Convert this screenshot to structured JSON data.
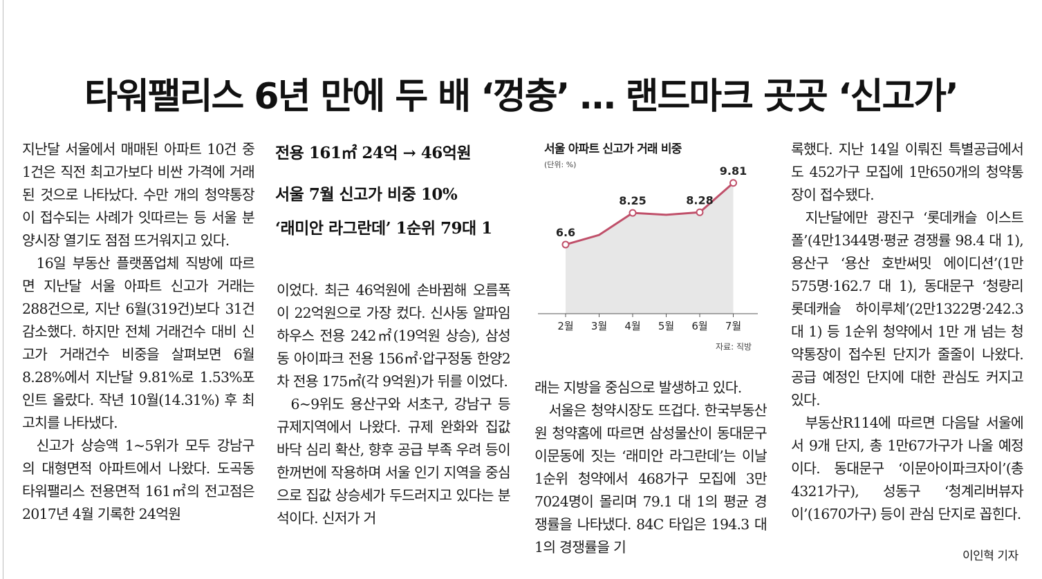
{
  "headline": "타워팰리스 6년 만에 두 배 ‘껑충’ … 랜드마크 곳곳 ‘신고가’",
  "subheads": [
    "전용 161㎡ 24억 → 46억원",
    "서울 7월 신고가 비중 10%",
    "‘래미안 라그란데’ 1순위 79대 1"
  ],
  "columns": {
    "col1": [
      "지난달 서울에서 매매된 아파트 10건 중 1건은 직전 최고가보다 비싼 가격에 거래된 것으로 나타났다. 수만 개의 청약통장이 접수되는 사례가 잇따르는 등 서울 분양시장 열기도 점점 뜨거워지고 있다.",
      "16일 부동산 플랫폼업체 직방에 따르면 지난달 서울 아파트 신고가 거래는 288건으로, 지난 6월(319건)보다 31건 감소했다. 하지만 전체 거래건수 대비 신고가 거래건수 비중을 살펴보면 6월 8.28%에서 지난달 9.81%로 1.53%포인트 올랐다. 작년 10월(14.31%) 후 최고치를 나타냈다.",
      "신고가 상승액 1~5위가 모두 강남구의 대형면적 아파트에서 나왔다. 도곡동 타워팰리스 전용면적 161㎡의 전고점은 2017년 4월 기록한 24억원"
    ],
    "col2": [
      "이었다. 최근 46억원에 손바뀜해 오름폭이 22억원으로 가장 컸다. 신사동 알파임하우스 전용 242㎡(19억원 상승), 삼성동 아이파크 전용 156㎡·압구정동 한양2차 전용 175㎡(각 9억원)가 뒤를 이었다.",
      "6~9위도 용산구와 서초구, 강남구 등 규제지역에서 나왔다. 규제 완화와 집값 바닥 심리 확산, 향후 공급 부족 우려 등이 한꺼번에 작용하며 서울 인기 지역을 중심으로 집값 상승세가 두드러지고 있다는 분석이다. 신저가 거"
    ],
    "col3": [
      "래는 지방을 중심으로 발생하고 있다.",
      "서울은 청약시장도 뜨겁다. 한국부동산원 청약홈에 따르면 삼성물산이 동대문구 이문동에 짓는 ‘래미안 라그란데’는 이날 1순위 청약에서 468가구 모집에 3만7024명이 몰리며 79.1 대 1의 평균 경쟁률을 나타냈다. 84C 타입은 194.3 대 1의 경쟁률을 기"
    ],
    "col4": [
      "록했다. 지난 14일 이뤄진 특별공급에서도 452가구 모집에 1만650개의 청약통장이 접수됐다.",
      "지난달에만 광진구 ‘롯데캐슬 이스트폴’(4만1344명·평균 경쟁률 98.4 대 1), 용산구 ‘용산 호반써밋 에이디션’(1만575명·162.7 대 1), 동대문구 ‘청량리 롯데캐슬 하이루체’(2만1322명·242.3 대 1) 등 1순위 청약에서 1만 개 넘는 청약통장이 접수된 단지가 줄줄이 나왔다. 공급 예정인 단지에 대한 관심도 커지고 있다.",
      "부동산R114에 따르면 다음달 서울에서 9개 단지, 총 1만67가구가 나올 예정이다. 동대문구 ‘이문아이파크자이’(총 4321가구), 성동구 ‘청계리버뷰자이’(1670가구) 등이 관심 단지로 꼽힌다."
    ]
  },
  "byline": "이인혁 기자",
  "chart_data": {
    "type": "area",
    "title": "서울 아파트 신고가 거래 비중",
    "unit": "(단위: %)",
    "source": "자료: 직방",
    "categories": [
      "2월",
      "3월",
      "4월",
      "5월",
      "6월",
      "7월"
    ],
    "values": [
      6.6,
      7.1,
      8.25,
      8.15,
      8.28,
      9.81
    ],
    "labels": [
      "6.6",
      "",
      "8.25",
      "",
      "8.28",
      "9.81"
    ],
    "ylim": [
      3.0,
      10.7
    ],
    "colors": {
      "line": "#c0506a",
      "fill": "#e7e7e7",
      "axis": "#555555"
    }
  }
}
